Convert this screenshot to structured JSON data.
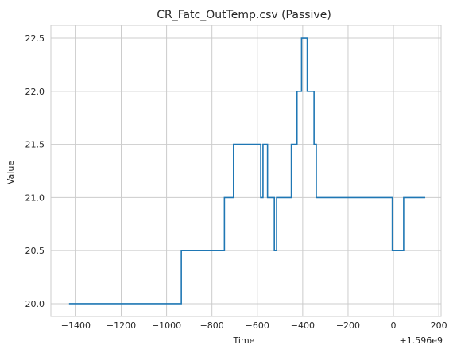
{
  "chart_data": {
    "type": "line",
    "title": "CR_Fatc_OutTemp.csv (Passive)",
    "xlabel": "Time",
    "ylabel": "Value",
    "x_offset_label": "+1.596e9",
    "xlim": [
      -1510,
      210
    ],
    "ylim": [
      19.88,
      22.62
    ],
    "xticks": [
      -1400,
      -1200,
      -1000,
      -800,
      -600,
      -400,
      -200,
      0,
      200
    ],
    "yticks": [
      20.0,
      20.5,
      21.0,
      21.5,
      22.0,
      22.5
    ],
    "grid": true,
    "step": "post",
    "colors": {
      "series": "#1f77b4",
      "grid": "#cccccc",
      "axes": "#cccccc"
    },
    "series": [
      {
        "x": [
          -1430,
          -935,
          -745,
          -705,
          -590,
          -585,
          -575,
          -555,
          -525,
          -515,
          -500,
          -450,
          -425,
          -405,
          -395,
          -380,
          -365,
          -350,
          -340,
          -330,
          -5,
          45,
          140
        ],
        "y": [
          20.0,
          20.5,
          21.0,
          21.5,
          21.5,
          21.0,
          21.5,
          21.0,
          20.5,
          21.0,
          21.0,
          21.5,
          22.0,
          22.5,
          22.5,
          22.0,
          22.0,
          21.5,
          21.0,
          21.0,
          20.5,
          21.0,
          21.0
        ]
      }
    ]
  }
}
